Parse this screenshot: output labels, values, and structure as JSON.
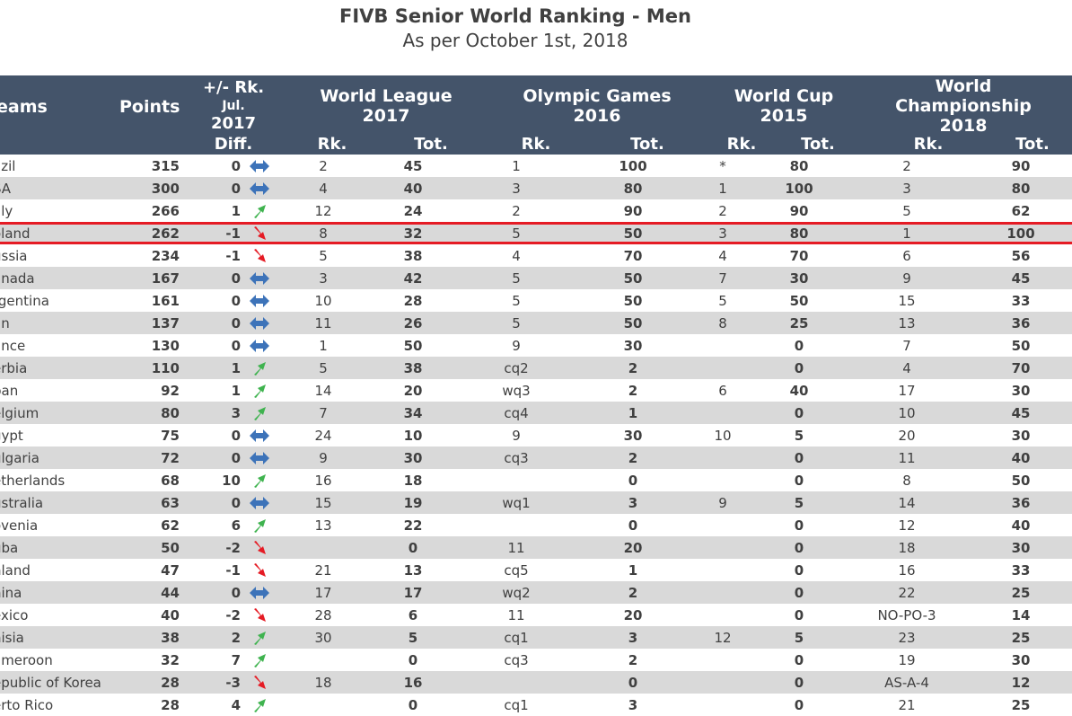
{
  "title": "FIVB Senior World Ranking - Men",
  "subtitle": "As per October 1st, 2018",
  "header": {
    "teams": "eams",
    "points": "Points",
    "rk_change": "+/- Rk.",
    "jul": "Jul.",
    "year": "2017",
    "diff": "Diff.",
    "wl_title": "World League",
    "wl_year": "2017",
    "og_title": "Olympic Games",
    "og_year": "2016",
    "wc_title": "World Cup",
    "wc_year": "2015",
    "wch_title1": "World",
    "wch_title2": "Championship",
    "wch_year": "2018",
    "rk": "Rk.",
    "tot": "Tot."
  },
  "colors": {
    "header_bg": "#44546a",
    "up": "#3fb34f",
    "down": "#e51b24",
    "same": "#3d73b9",
    "highlight": "#e51b24"
  },
  "rows": [
    {
      "team": "azil",
      "points": "315",
      "diff": "0",
      "trend": "same",
      "wl_rk": "2",
      "wl_tot": "45",
      "og_rk": "1",
      "og_tot": "100",
      "wc_rk": "*",
      "wc_tot": "80",
      "wch_rk": "2",
      "wch_tot": "90"
    },
    {
      "team": "SA",
      "points": "300",
      "diff": "0",
      "trend": "same",
      "wl_rk": "4",
      "wl_tot": "40",
      "og_rk": "3",
      "og_tot": "80",
      "wc_rk": "1",
      "wc_tot": "100",
      "wch_rk": "3",
      "wch_tot": "80"
    },
    {
      "team": "aly",
      "points": "266",
      "diff": "1",
      "trend": "up",
      "wl_rk": "12",
      "wl_tot": "24",
      "og_rk": "2",
      "og_tot": "90",
      "wc_rk": "2",
      "wc_tot": "90",
      "wch_rk": "5",
      "wch_tot": "62"
    },
    {
      "team": "oland",
      "points": "262",
      "diff": "-1",
      "trend": "down",
      "wl_rk": "8",
      "wl_tot": "32",
      "og_rk": "5",
      "og_tot": "50",
      "wc_rk": "3",
      "wc_tot": "80",
      "wch_rk": "1",
      "wch_tot": "100",
      "highlight": true
    },
    {
      "team": "ussia",
      "points": "234",
      "diff": "-1",
      "trend": "down",
      "wl_rk": "5",
      "wl_tot": "38",
      "og_rk": "4",
      "og_tot": "70",
      "wc_rk": "4",
      "wc_tot": "70",
      "wch_rk": "6",
      "wch_tot": "56"
    },
    {
      "team": "anada",
      "points": "167",
      "diff": "0",
      "trend": "same",
      "wl_rk": "3",
      "wl_tot": "42",
      "og_rk": "5",
      "og_tot": "50",
      "wc_rk": "7",
      "wc_tot": "30",
      "wch_rk": "9",
      "wch_tot": "45"
    },
    {
      "team": "rgentina",
      "points": "161",
      "diff": "0",
      "trend": "same",
      "wl_rk": "10",
      "wl_tot": "28",
      "og_rk": "5",
      "og_tot": "50",
      "wc_rk": "5",
      "wc_tot": "50",
      "wch_rk": "15",
      "wch_tot": "33"
    },
    {
      "team": "an",
      "points": "137",
      "diff": "0",
      "trend": "same",
      "wl_rk": "11",
      "wl_tot": "26",
      "og_rk": "5",
      "og_tot": "50",
      "wc_rk": "8",
      "wc_tot": "25",
      "wch_rk": "13",
      "wch_tot": "36"
    },
    {
      "team": "ance",
      "points": "130",
      "diff": "0",
      "trend": "same",
      "wl_rk": "1",
      "wl_tot": "50",
      "og_rk": "9",
      "og_tot": "30",
      "wc_rk": "",
      "wc_tot": "0",
      "wch_rk": "7",
      "wch_tot": "50"
    },
    {
      "team": "erbia",
      "points": "110",
      "diff": "1",
      "trend": "up",
      "wl_rk": "5",
      "wl_tot": "38",
      "og_rk": "cq2",
      "og_tot": "2",
      "wc_rk": "",
      "wc_tot": "0",
      "wch_rk": "4",
      "wch_tot": "70"
    },
    {
      "team": "pan",
      "points": "92",
      "diff": "1",
      "trend": "up",
      "wl_rk": "14",
      "wl_tot": "20",
      "og_rk": "wq3",
      "og_tot": "2",
      "wc_rk": "6",
      "wc_tot": "40",
      "wch_rk": "17",
      "wch_tot": "30"
    },
    {
      "team": "elgium",
      "points": "80",
      "diff": "3",
      "trend": "up",
      "wl_rk": "7",
      "wl_tot": "34",
      "og_rk": "cq4",
      "og_tot": "1",
      "wc_rk": "",
      "wc_tot": "0",
      "wch_rk": "10",
      "wch_tot": "45"
    },
    {
      "team": "gypt",
      "points": "75",
      "diff": "0",
      "trend": "same",
      "wl_rk": "24",
      "wl_tot": "10",
      "og_rk": "9",
      "og_tot": "30",
      "wc_rk": "10",
      "wc_tot": "5",
      "wch_rk": "20",
      "wch_tot": "30"
    },
    {
      "team": "ulgaria",
      "points": "72",
      "diff": "0",
      "trend": "same",
      "wl_rk": "9",
      "wl_tot": "30",
      "og_rk": "cq3",
      "og_tot": "2",
      "wc_rk": "",
      "wc_tot": "0",
      "wch_rk": "11",
      "wch_tot": "40"
    },
    {
      "team": "etherlands",
      "points": "68",
      "diff": "10",
      "trend": "up",
      "wl_rk": "16",
      "wl_tot": "18",
      "og_rk": "",
      "og_tot": "0",
      "wc_rk": "",
      "wc_tot": "0",
      "wch_rk": "8",
      "wch_tot": "50"
    },
    {
      "team": "ustralia",
      "points": "63",
      "diff": "0",
      "trend": "same",
      "wl_rk": "15",
      "wl_tot": "19",
      "og_rk": "wq1",
      "og_tot": "3",
      "wc_rk": "9",
      "wc_tot": "5",
      "wch_rk": "14",
      "wch_tot": "36"
    },
    {
      "team": "ovenia",
      "points": "62",
      "diff": "6",
      "trend": "up",
      "wl_rk": "13",
      "wl_tot": "22",
      "og_rk": "",
      "og_tot": "0",
      "wc_rk": "",
      "wc_tot": "0",
      "wch_rk": "12",
      "wch_tot": "40"
    },
    {
      "team": "uba",
      "points": "50",
      "diff": "-2",
      "trend": "down",
      "wl_rk": "",
      "wl_tot": "0",
      "og_rk": "11",
      "og_tot": "20",
      "wc_rk": "",
      "wc_tot": "0",
      "wch_rk": "18",
      "wch_tot": "30"
    },
    {
      "team": "nland",
      "points": "47",
      "diff": "-1",
      "trend": "down",
      "wl_rk": "21",
      "wl_tot": "13",
      "og_rk": "cq5",
      "og_tot": "1",
      "wc_rk": "",
      "wc_tot": "0",
      "wch_rk": "16",
      "wch_tot": "33"
    },
    {
      "team": "hina",
      "points": "44",
      "diff": "0",
      "trend": "same",
      "wl_rk": "17",
      "wl_tot": "17",
      "og_rk": "wq2",
      "og_tot": "2",
      "wc_rk": "",
      "wc_tot": "0",
      "wch_rk": "22",
      "wch_tot": "25"
    },
    {
      "team": "exico",
      "points": "40",
      "diff": "-2",
      "trend": "down",
      "wl_rk": "28",
      "wl_tot": "6",
      "og_rk": "11",
      "og_tot": "20",
      "wc_rk": "",
      "wc_tot": "0",
      "wch_rk": "NO-PO-3",
      "wch_tot": "14"
    },
    {
      "team": "nisia",
      "points": "38",
      "diff": "2",
      "trend": "up",
      "wl_rk": "30",
      "wl_tot": "5",
      "og_rk": "cq1",
      "og_tot": "3",
      "wc_rk": "12",
      "wc_tot": "5",
      "wch_rk": "23",
      "wch_tot": "25"
    },
    {
      "team": "ameroon",
      "points": "32",
      "diff": "7",
      "trend": "up",
      "wl_rk": "",
      "wl_tot": "0",
      "og_rk": "cq3",
      "og_tot": "2",
      "wc_rk": "",
      "wc_tot": "0",
      "wch_rk": "19",
      "wch_tot": "30"
    },
    {
      "team": "epublic of Korea",
      "points": "28",
      "diff": "-3",
      "trend": "down",
      "wl_rk": "18",
      "wl_tot": "16",
      "og_rk": "",
      "og_tot": "0",
      "wc_rk": "",
      "wc_tot": "0",
      "wch_rk": "AS-A-4",
      "wch_tot": "12"
    },
    {
      "team": "erto Rico",
      "points": "28",
      "diff": "4",
      "trend": "up",
      "wl_rk": "",
      "wl_tot": "0",
      "og_rk": "cq1",
      "og_tot": "3",
      "wc_rk": "",
      "wc_tot": "0",
      "wch_rk": "21",
      "wch_tot": "25"
    }
  ]
}
